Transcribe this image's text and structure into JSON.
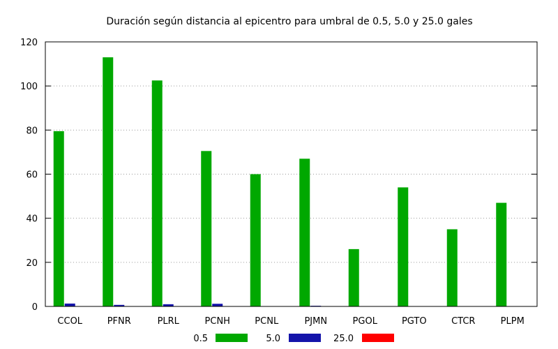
{
  "chart_data": {
    "type": "bar",
    "title": "Duración según distancia al epicentro para umbral de 0.5, 5.0 y 25.0 gales",
    "xlabel": "",
    "ylabel": "",
    "ylim": [
      0,
      120
    ],
    "yticks": [
      0,
      20,
      40,
      60,
      80,
      100,
      120
    ],
    "grid": true,
    "legend_position": "bottom",
    "categories": [
      "CCOL",
      "PFNR",
      "PLRL",
      "PCNH",
      "PCNL",
      "PJMN",
      "PGOL",
      "PGTO",
      "CTCR",
      "PLPM"
    ],
    "series": [
      {
        "name": "0.5",
        "color": "#00a800",
        "values": [
          79.5,
          113,
          102.5,
          70.5,
          60,
          67,
          26,
          54,
          35,
          47
        ]
      },
      {
        "name": "5.0",
        "color": "#1414aa",
        "values": [
          1.3,
          0.7,
          1.0,
          1.2,
          0,
          0.3,
          0,
          0,
          0,
          0
        ]
      },
      {
        "name": "25.0",
        "color": "#ff0000",
        "values": [
          0,
          0,
          0,
          0,
          0,
          0,
          0,
          0,
          0,
          0
        ]
      }
    ]
  }
}
